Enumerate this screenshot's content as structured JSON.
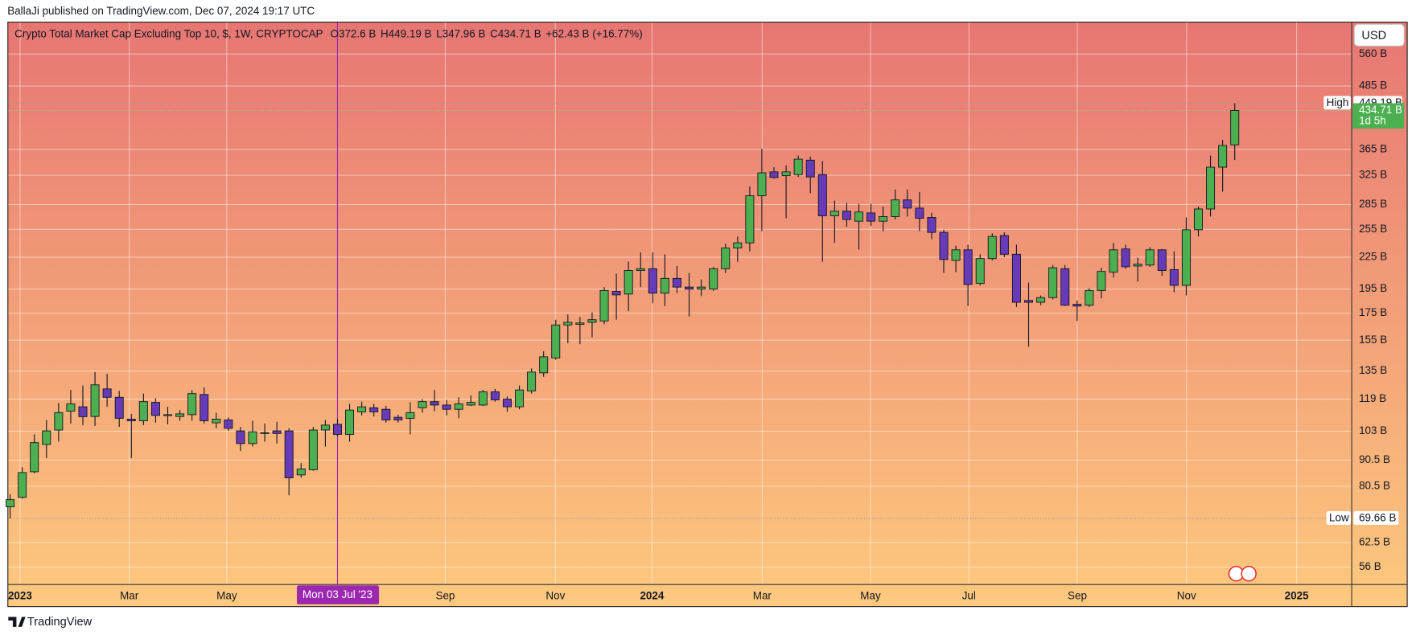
{
  "header": {
    "publisher": "BallaJi published on TradingView.com, Dec 07, 2024 19:17 UTC"
  },
  "footer": {
    "brand": "TradingView"
  },
  "chart_data": {
    "type": "candlestick",
    "title": "Crypto Total Market Cap Excluding Top 10, $, 1W, CRYPTOCAP",
    "legend": [
      "O372.6 B",
      "H449.19 B",
      "L347.96 B",
      "C434.71 B",
      "+62.43 B (+16.77%)"
    ],
    "currency": "USD",
    "log_scale": true,
    "grid": true,
    "up_color": "#4caf50",
    "down_color": "#673ab7",
    "opens": [
      73.4,
      76.6,
      85.9,
      97.1,
      103.6,
      112.8,
      115,
      110.1,
      124.6,
      120,
      108.8,
      108,
      117.3,
      110.6,
      110.1,
      111,
      121.5,
      107,
      108.4,
      103.2,
      97.5,
      102,
      103.2,
      103.2,
      84.7,
      86.7,
      103.6,
      106.3,
      101.6,
      112.4,
      114.5,
      113.7,
      109.7,
      109.2,
      114.5,
      117.7,
      115.9,
      113.7,
      115.9,
      115.9,
      123,
      119,
      115,
      123.5,
      133.9,
      143.2,
      166,
      166.5,
      168,
      169,
      193,
      190.7,
      212,
      213.7,
      191.5,
      204.6,
      196.8,
      195,
      195,
      213.7,
      234.5,
      240,
      296.5,
      330,
      324.4,
      326,
      347.8,
      326,
      271,
      276.7,
      264.5,
      274.5,
      264.5,
      270,
      291,
      280.5,
      269,
      251.5,
      221.8,
      232.6,
      200,
      223.6,
      248,
      228,
      185.3,
      183.8,
      187.7,
      213.7,
      182.1,
      181.4,
      193.8,
      210.4,
      233.5,
      216.3,
      217.2,
      232.6,
      212.8,
      198.3,
      254.5,
      279.4,
      337,
      372.6
    ],
    "highs": [
      77.7,
      87.7,
      101.6,
      108.4,
      117,
      124,
      126.5,
      134.4,
      133.3,
      123.5,
      111.4,
      122,
      119.5,
      115,
      113.3,
      124,
      125.5,
      112,
      109.6,
      105.1,
      108,
      106.7,
      107.5,
      104.4,
      89.3,
      105.1,
      108.4,
      108.8,
      116.5,
      117.7,
      116.5,
      115.5,
      111,
      117.3,
      119,
      124,
      118.6,
      120,
      121,
      124,
      124.6,
      120.5,
      126.5,
      136.6,
      147.5,
      170,
      174,
      172,
      175.5,
      196.8,
      209,
      220.6,
      230,
      230,
      228,
      216.3,
      209.6,
      203.6,
      215.5,
      239.2,
      247,
      309,
      366,
      337,
      339.8,
      355,
      353.5,
      346.5,
      290,
      287,
      286,
      286,
      282.5,
      305,
      305,
      301.5,
      274.5,
      254.5,
      237,
      238,
      228,
      250.5,
      251.5,
      238,
      200.8,
      189.5,
      217.3,
      217.3,
      185.3,
      195.8,
      214.6,
      240,
      238,
      224.5,
      235.4,
      233.5,
      231,
      269,
      282.5,
      355,
      381,
      449.19
    ],
    "lows": [
      69.66,
      76.1,
      85.3,
      91.3,
      98.3,
      106.7,
      105.9,
      105.5,
      115,
      105.1,
      91.3,
      105.9,
      107.1,
      106.3,
      108,
      108,
      106.7,
      104.4,
      103.2,
      94.3,
      96.2,
      98.3,
      97.5,
      77.3,
      83.6,
      86.3,
      96.2,
      100.8,
      98.3,
      110.6,
      110.1,
      107.1,
      107.1,
      101.6,
      112,
      112.8,
      110.6,
      109.2,
      115.4,
      115.4,
      117.7,
      112.4,
      113.7,
      122,
      131.6,
      142,
      153,
      152.3,
      157,
      166.6,
      170,
      176.6,
      196.8,
      183,
      180.7,
      191.5,
      172.5,
      189,
      193.5,
      209.6,
      220.6,
      231,
      253,
      320,
      268,
      322.6,
      300,
      220.6,
      240,
      258,
      233,
      259,
      253,
      266.5,
      270,
      253,
      244,
      209.6,
      210.4,
      180.7,
      198.3,
      221.8,
      225.2,
      180,
      150.6,
      181.4,
      186.2,
      180.7,
      169,
      180,
      187,
      205.4,
      213.7,
      201.6,
      215.5,
      206.9,
      192.3,
      189.5,
      247,
      270,
      302,
      347.96
    ],
    "closes": [
      75.8,
      85.6,
      97.9,
      103.2,
      112,
      116.5,
      110,
      126.9,
      120,
      109.2,
      108,
      117.7,
      110.6,
      111,
      111.4,
      122,
      108,
      108.8,
      104.4,
      97.5,
      102.8,
      102.4,
      102,
      83.6,
      87,
      103.6,
      105.9,
      101.6,
      113.3,
      115,
      112.4,
      108.4,
      108.4,
      112,
      117.7,
      115.9,
      113.7,
      116.5,
      117.3,
      123,
      118.6,
      115,
      124,
      134.4,
      143.9,
      166,
      168,
      167.5,
      170,
      193.8,
      190,
      212,
      213.7,
      191.5,
      204.6,
      196.8,
      195,
      196.8,
      213.7,
      234.5,
      240,
      296.5,
      328.6,
      321.8,
      330,
      349.3,
      322.6,
      271,
      276.7,
      266.5,
      275.6,
      264.5,
      270,
      291,
      280.5,
      268,
      251.5,
      222.7,
      232.6,
      199.1,
      223.6,
      247,
      228,
      183.8,
      183.8,
      187.7,
      214.6,
      181.4,
      180.7,
      193.8,
      211.1,
      232.6,
      215.5,
      218.1,
      232.6,
      212,
      198.3,
      254.5,
      279.4,
      337,
      371.5,
      434.71
    ],
    "ylim": [
      51.8,
      645
    ],
    "yticks": [
      {
        "value": 560,
        "label": "560 B"
      },
      {
        "value": 485,
        "label": "485 B"
      },
      {
        "value": 365,
        "label": "365 B"
      },
      {
        "value": 325,
        "label": "325 B"
      },
      {
        "value": 285,
        "label": "285 B"
      },
      {
        "value": 255,
        "label": "255 B"
      },
      {
        "value": 225,
        "label": "225 B"
      },
      {
        "value": 195,
        "label": "195 B"
      },
      {
        "value": 175,
        "label": "175 B"
      },
      {
        "value": 155,
        "label": "155 B"
      },
      {
        "value": 135,
        "label": "135 B"
      },
      {
        "value": 119,
        "label": "119 B"
      },
      {
        "value": 103,
        "label": "103 B"
      },
      {
        "value": 90.5,
        "label": "90.5 B"
      },
      {
        "value": 80.5,
        "label": "80.5 B"
      },
      {
        "value": 62.5,
        "label": "62.5 B"
      },
      {
        "value": 56,
        "label": "56 B"
      }
    ],
    "xticks": [
      "2023",
      "Mar",
      "May",
      "Sep",
      "Nov",
      "2024",
      "Mar",
      "May",
      "Jul",
      "Sep",
      "Nov",
      "2025"
    ],
    "high_marker": {
      "label": "High",
      "value": 449.19,
      "value_label": "449.19 B"
    },
    "last_price": {
      "value": 434.71,
      "value_label": "434.71 B",
      "countdown": "1d 5h"
    },
    "low_marker": {
      "label": "Low",
      "value": 69.66,
      "value_label": "69.66 B"
    },
    "crosshair": {
      "label": "Mon 03 Jul '23"
    }
  }
}
